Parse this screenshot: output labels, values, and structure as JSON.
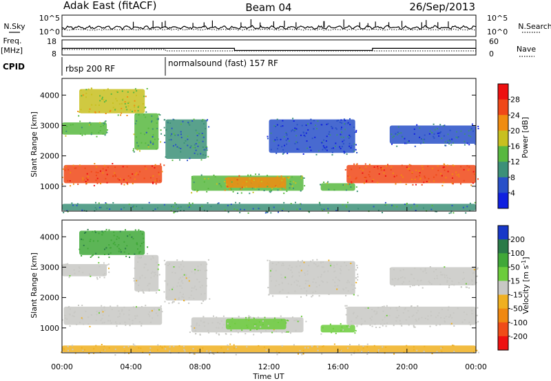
{
  "header": {
    "site": "Adak East (fitACF)",
    "beam": "Beam 04",
    "date": "26/Sep/2013"
  },
  "panel_labels": {
    "nsky": "N.Sky",
    "freq_line1": "Freq.",
    "freq_line2": "[MHz]",
    "cpid": "CPID",
    "nsearch": "N.Search",
    "nave": "Nave"
  },
  "noise_panel": {
    "left_ticks": [
      "10^5",
      "10^0"
    ],
    "right_ticks": [
      "10^5",
      "10^0"
    ]
  },
  "freq_panel": {
    "left_ticks": [
      18,
      8
    ],
    "right_ticks": [
      60,
      0
    ],
    "freq_mhz": [
      [
        0,
        12.4
      ],
      [
        10,
        11.0
      ],
      [
        18,
        12.4
      ],
      [
        24,
        12.4
      ]
    ]
  },
  "cpid_panel": {
    "segments": [
      {
        "start": 0,
        "end": 6,
        "label": "rbsp 200 RF"
      },
      {
        "start": 6,
        "end": 24,
        "label": "normalsound (fast) 157 RF"
      }
    ]
  },
  "x_axis": {
    "label": "Time UT",
    "ticks": [
      0,
      4,
      8,
      12,
      16,
      20,
      24
    ],
    "tick_labels": [
      "00:00",
      "04:00",
      "08:00",
      "12:00",
      "16:00",
      "20:00",
      "00:00"
    ],
    "range": [
      0,
      24
    ]
  },
  "y_axis": {
    "label": "Slant Range [km]",
    "ticks": [
      1000,
      2000,
      3000,
      4000
    ],
    "range": [
      180,
      4550
    ]
  },
  "chart_data": [
    {
      "type": "heatmap",
      "quantity": "Power",
      "colorbar_label": "Power [dB]",
      "colorbar_ticks": [
        4,
        8,
        12,
        16,
        20,
        24,
        28
      ],
      "colorbar_range": [
        0,
        32
      ],
      "colors": [
        "#1020e0",
        "#2850c8",
        "#3c9078",
        "#58b840",
        "#c8c020",
        "#f08c10",
        "#f04818",
        "#ee1010"
      ],
      "regions": [
        {
          "t0": 0.1,
          "t1": 5.8,
          "r0": 1100,
          "r1": 1700,
          "v": 25
        },
        {
          "t0": 0.0,
          "t1": 2.6,
          "r0": 2700,
          "r1": 3100,
          "v": 13
        },
        {
          "t0": 1.0,
          "t1": 4.8,
          "r0": 3400,
          "r1": 4200,
          "v": 18
        },
        {
          "t0": 4.2,
          "t1": 5.6,
          "r0": 2200,
          "r1": 3400,
          "v": 12
        },
        {
          "t0": 6.0,
          "t1": 8.4,
          "r0": 1900,
          "r1": 3200,
          "v": 9
        },
        {
          "t0": 7.5,
          "t1": 14.0,
          "r0": 850,
          "r1": 1350,
          "v": 14
        },
        {
          "t0": 9.5,
          "t1": 13.0,
          "r0": 950,
          "r1": 1300,
          "v": 20
        },
        {
          "t0": 15.0,
          "t1": 17.0,
          "r0": 850,
          "r1": 1100,
          "v": 13
        },
        {
          "t0": 12.0,
          "t1": 17.0,
          "r0": 2100,
          "r1": 3200,
          "v": 5
        },
        {
          "t0": 16.5,
          "t1": 24.0,
          "r0": 1100,
          "r1": 1700,
          "v": 25
        },
        {
          "t0": 19.0,
          "t1": 24.0,
          "r0": 2400,
          "r1": 3000,
          "v": 7
        },
        {
          "t0": 0.0,
          "t1": 24.0,
          "r0": 200,
          "r1": 420,
          "v": 10
        }
      ]
    },
    {
      "type": "heatmap",
      "quantity": "Velocity",
      "colorbar_label": "Velocity [m s^-1]",
      "colorbar_ticks": [
        200,
        100,
        50,
        15,
        -15,
        -50,
        -100,
        -200
      ],
      "colorbar_range": [
        -250,
        250
      ],
      "colors": [
        "#1838c8",
        "#2a7a48",
        "#40a838",
        "#6ccc3c",
        "#c8c8c4",
        "#f0b020",
        "#f08810",
        "#f04c18",
        "#ee1010"
      ],
      "regions": [
        {
          "t0": 0.1,
          "t1": 5.8,
          "r0": 1100,
          "r1": 1700,
          "v": 0
        },
        {
          "t0": 0.0,
          "t1": 2.6,
          "r0": 2700,
          "r1": 3100,
          "v": 0
        },
        {
          "t0": 1.0,
          "t1": 4.8,
          "r0": 3400,
          "r1": 4200,
          "v": 120
        },
        {
          "t0": 4.2,
          "t1": 5.6,
          "r0": 2200,
          "r1": 3400,
          "v": 0
        },
        {
          "t0": 6.0,
          "t1": 8.4,
          "r0": 1900,
          "r1": 3200,
          "v": 0
        },
        {
          "t0": 7.5,
          "t1": 14.0,
          "r0": 850,
          "r1": 1350,
          "v": 0
        },
        {
          "t0": 9.5,
          "t1": 13.0,
          "r0": 950,
          "r1": 1300,
          "v": 40
        },
        {
          "t0": 15.0,
          "t1": 17.0,
          "r0": 850,
          "r1": 1100,
          "v": 45
        },
        {
          "t0": 12.0,
          "t1": 17.0,
          "r0": 2100,
          "r1": 3200,
          "v": 0
        },
        {
          "t0": 16.5,
          "t1": 24.0,
          "r0": 1100,
          "r1": 1700,
          "v": 0
        },
        {
          "t0": 19.0,
          "t1": 24.0,
          "r0": 2400,
          "r1": 3000,
          "v": 0
        },
        {
          "t0": 0.0,
          "t1": 24.0,
          "r0": 200,
          "r1": 420,
          "v": -30
        }
      ]
    }
  ]
}
